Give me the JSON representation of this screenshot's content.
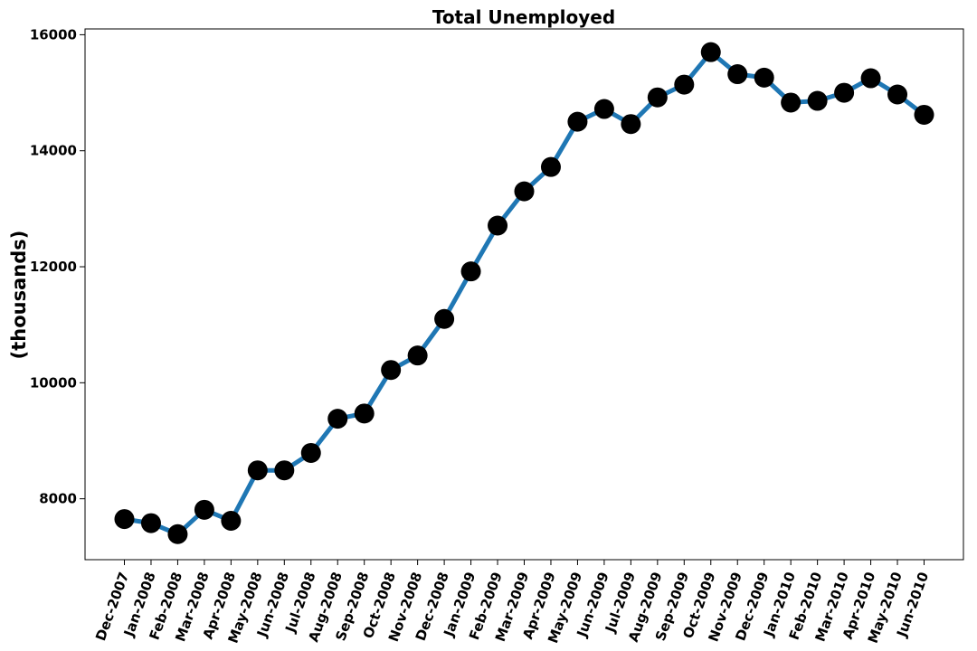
{
  "chart_data": {
    "type": "line",
    "title": "Total Unemployed",
    "xlabel": "",
    "ylabel": "(thousands)",
    "ylim": [
      6950,
      16100
    ],
    "yticks": [
      8000,
      10000,
      12000,
      14000,
      16000
    ],
    "grid": false,
    "legend": "none",
    "line_color": "#1f77b4",
    "marker_color": "#000000",
    "categories": [
      "Dec-2007",
      "Jan-2008",
      "Feb-2008",
      "Mar-2008",
      "Apr-2008",
      "May-2008",
      "Jun-2008",
      "Jul-2008",
      "Aug-2008",
      "Sep-2008",
      "Oct-2008",
      "Nov-2008",
      "Dec-2008",
      "Jan-2009",
      "Feb-2009",
      "Mar-2009",
      "Apr-2009",
      "May-2009",
      "Jun-2009",
      "Jul-2009",
      "Aug-2009",
      "Sep-2009",
      "Oct-2009",
      "Nov-2009",
      "Dec-2009",
      "Jan-2010",
      "Feb-2010",
      "Mar-2010",
      "Apr-2010",
      "May-2010",
      "Jun-2010"
    ],
    "series": [
      {
        "values": [
          7650,
          7580,
          7390,
          7810,
          7620,
          8490,
          8490,
          8790,
          9380,
          9470,
          10220,
          10470,
          11100,
          11920,
          12710,
          13300,
          13720,
          14500,
          14720,
          14460,
          14920,
          15140,
          15700,
          15320,
          15260,
          14830,
          14860,
          15000,
          15250,
          14970,
          14620
        ]
      }
    ]
  }
}
